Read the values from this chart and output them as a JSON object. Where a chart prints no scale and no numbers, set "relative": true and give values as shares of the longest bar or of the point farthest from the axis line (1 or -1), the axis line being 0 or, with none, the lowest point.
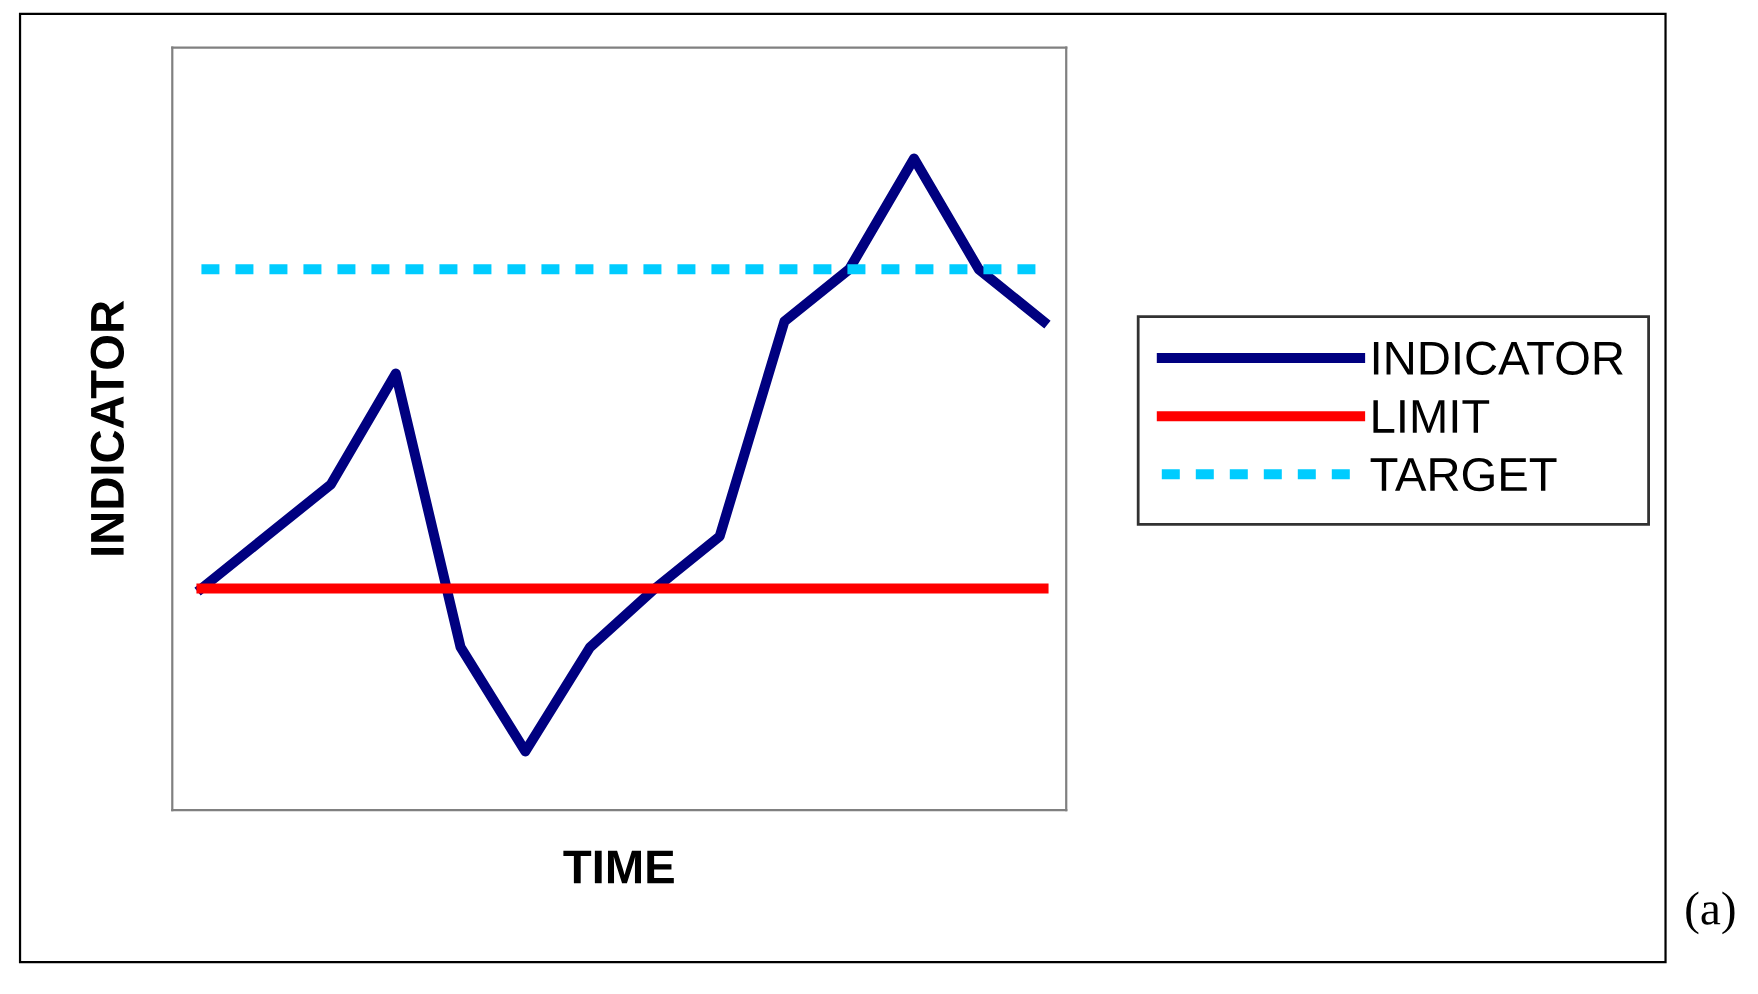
{
  "chart_data": {
    "type": "line",
    "relative": true,
    "xlabel": "TIME",
    "ylabel": "INDICATOR",
    "categories": [
      null,
      null,
      null,
      null,
      null,
      null,
      null,
      null,
      null,
      null,
      null,
      null,
      null,
      null
    ],
    "tick_labels": false,
    "legend": "right",
    "grid": false,
    "marker": "none",
    "annotations": [
      "(a)"
    ],
    "series": [
      {
        "name": "INDICATOR",
        "color": "#000080",
        "values": [
          0.34,
          0.42,
          0.5,
          0.67,
          0.25,
          0.09,
          0.25,
          0.34,
          0.42,
          0.75,
          0.83,
          1,
          0.83,
          0.75
        ]
      },
      {
        "name": "LIMIT",
        "color": "#ff0000",
        "values": [
          0.34,
          0.34,
          0.34,
          0.34,
          0.34,
          0.34,
          0.34,
          0.34,
          0.34,
          0.34,
          0.34,
          0.34,
          0.34,
          0.34
        ]
      },
      {
        "name": "TARGET",
        "color": "#00ccff",
        "line_style": "dotted",
        "values": [
          0.83,
          0.83,
          0.83,
          0.83,
          0.83,
          0.83,
          0.83,
          0.83,
          0.83,
          0.83,
          0.83,
          0.83,
          0.83,
          0.83
        ]
      }
    ]
  }
}
